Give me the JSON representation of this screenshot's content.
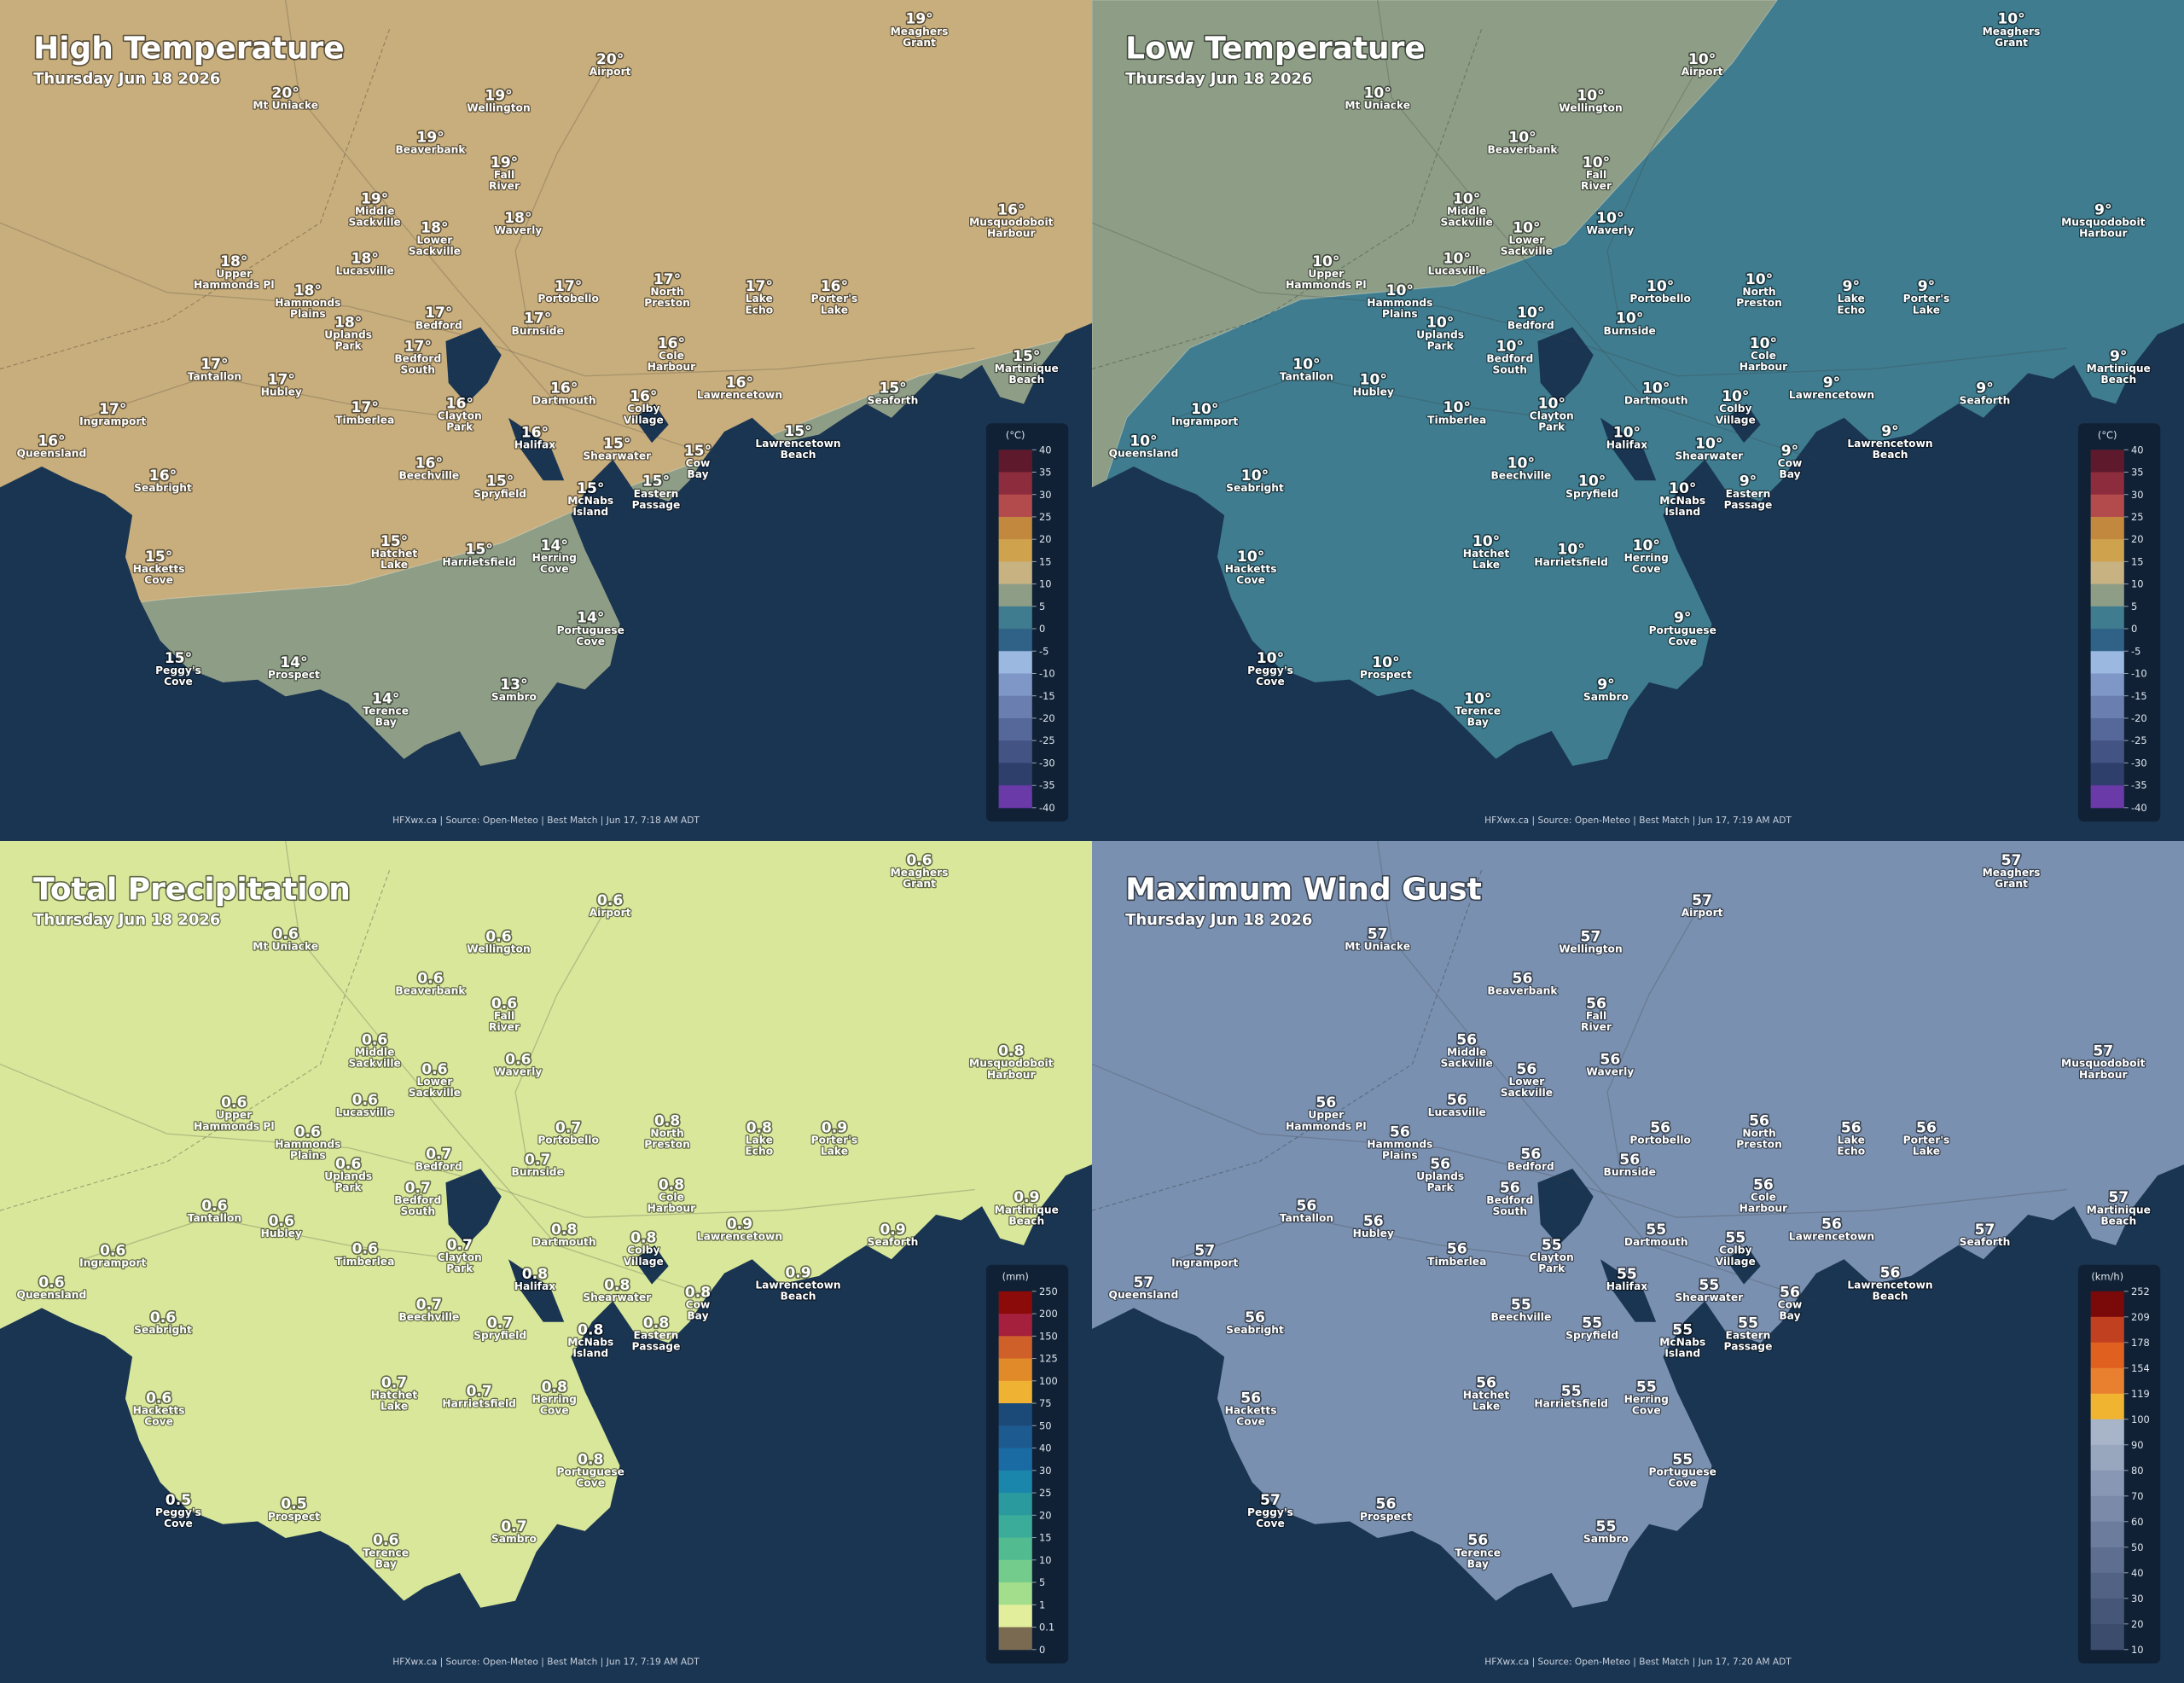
{
  "places": [
    [
      "Meaghers",
      "Grant"
    ],
    [
      "Airport"
    ],
    [
      "Mt Uniacke"
    ],
    [
      "Wellington"
    ],
    [
      "Beaverbank"
    ],
    [
      "Fall",
      "River"
    ],
    [
      "Middle",
      "Sackville"
    ],
    [
      "Waverly"
    ],
    [
      "Lower",
      "Sackville"
    ],
    [
      "Musquodoboit",
      "Harbour"
    ],
    [
      "Upper",
      "Hammonds Pl"
    ],
    [
      "Lucasville"
    ],
    [
      "Portobello"
    ],
    [
      "North",
      "Preston"
    ],
    [
      "Lake",
      "Echo"
    ],
    [
      "Porter's",
      "Lake"
    ],
    [
      "Hammonds",
      "Plains"
    ],
    [
      "Bedford"
    ],
    [
      "Uplands",
      "Park"
    ],
    [
      "Burnside"
    ],
    [
      "Cole",
      "Harbour"
    ],
    [
      "Bedford",
      "South"
    ],
    [
      "Martinique",
      "Beach"
    ],
    [
      "Tantallon"
    ],
    [
      "Hubley"
    ],
    [
      "Dartmouth"
    ],
    [
      "Lawrencetown"
    ],
    [
      "Seaforth"
    ],
    [
      "Colby",
      "Village"
    ],
    [
      "Timberlea"
    ],
    [
      "Ingramport"
    ],
    [
      "Clayton",
      "Park"
    ],
    [
      "Halifax"
    ],
    [
      "Lawrencetown",
      "Beach"
    ],
    [
      "Queensland"
    ],
    [
      "Shearwater"
    ],
    [
      "Cow",
      "Bay"
    ],
    [
      "Beechville"
    ],
    [
      "Seabright"
    ],
    [
      "Spryfield"
    ],
    [
      "McNabs",
      "Island"
    ],
    [
      "Eastern",
      "Passage"
    ],
    [
      "Hatchet",
      "Lake"
    ],
    [
      "Harrietsfield"
    ],
    [
      "Herring",
      "Cove"
    ],
    [
      "Hacketts",
      "Cove"
    ],
    [
      "Portuguese",
      "Cove"
    ],
    [
      "Peggy's",
      "Cove"
    ],
    [
      "Prospect"
    ],
    [
      "Sambro"
    ],
    [
      "Terence",
      "Bay"
    ]
  ],
  "panels": [
    {
      "title": "High Temperature",
      "date": "Thursday Jun 18 2026",
      "footer": "HFXwx.ca | Source: Open-Meteo | Best Match | Jun 17, 7:18 AM ADT",
      "legend": {
        "unit": "(°C)",
        "ticks": [
          40,
          35,
          30,
          25,
          20,
          15,
          10,
          5,
          0,
          -5,
          -10,
          -15,
          -20,
          -25,
          -30,
          -35,
          -40
        ],
        "colors": [
          "#5e1a2c",
          "#8c2c3c",
          "#b34a4c",
          "#c2883e",
          "#cfa24e",
          "#c8b282",
          "#8e9e86",
          "#3f7c8f",
          "#2f6286",
          "#9ab8e0",
          "#7e97c6",
          "#6a7fb0",
          "#56689a",
          "#435484",
          "#2f3f6c",
          "#6a3aa8"
        ]
      },
      "values": [
        "19°",
        "20°",
        "20°",
        "19°",
        "19°",
        "19°",
        "19°",
        "18°",
        "18°",
        "16°",
        "18°",
        "18°",
        "17°",
        "17°",
        "17°",
        "16°",
        "18°",
        "17°",
        "18°",
        "17°",
        "16°",
        "17°",
        "15°",
        "17°",
        "17°",
        "16°",
        "16°",
        "15°",
        "16°",
        "17°",
        "17°",
        "16°",
        "16°",
        "15°",
        "16°",
        "15°",
        "15°",
        "16°",
        "16°",
        "15°",
        "15°",
        "15°",
        "15°",
        "15°",
        "14°",
        "15°",
        "14°",
        "15°",
        "14°",
        "13°",
        "14°"
      ]
    },
    {
      "title": "Low Temperature",
      "date": "Thursday Jun 18 2026",
      "footer": "HFXwx.ca | Source: Open-Meteo | Best Match | Jun 17, 7:19 AM ADT",
      "legend": {
        "unit": "(°C)",
        "ticks": [
          40,
          35,
          30,
          25,
          20,
          15,
          10,
          5,
          0,
          -5,
          -10,
          -15,
          -20,
          -25,
          -30,
          -35,
          -40
        ],
        "colors": [
          "#5e1a2c",
          "#8c2c3c",
          "#b34a4c",
          "#c2883e",
          "#cfa24e",
          "#c8b282",
          "#8e9e86",
          "#3f7c8f",
          "#2f6286",
          "#9ab8e0",
          "#7e97c6",
          "#6a7fb0",
          "#56689a",
          "#435484",
          "#2f3f6c",
          "#6a3aa8"
        ]
      },
      "values": [
        "10°",
        "10°",
        "10°",
        "10°",
        "10°",
        "10°",
        "10°",
        "10°",
        "10°",
        "9°",
        "10°",
        "10°",
        "10°",
        "10°",
        "9°",
        "9°",
        "10°",
        "10°",
        "10°",
        "10°",
        "10°",
        "10°",
        "9°",
        "10°",
        "10°",
        "10°",
        "9°",
        "9°",
        "10°",
        "10°",
        "10°",
        "10°",
        "10°",
        "9°",
        "10°",
        "10°",
        "9°",
        "10°",
        "10°",
        "10°",
        "10°",
        "9°",
        "10°",
        "10°",
        "10°",
        "10°",
        "9°",
        "10°",
        "10°",
        "9°",
        "10°"
      ]
    },
    {
      "title": "Total Precipitation",
      "date": "Thursday Jun 18 2026",
      "footer": "HFXwx.ca | Source: Open-Meteo | Best Match | Jun 17, 7:19 AM ADT",
      "legend": {
        "unit": "(mm)",
        "ticks": [
          250,
          200,
          150,
          125,
          100,
          75,
          50,
          40,
          30,
          25,
          20,
          15,
          10,
          5,
          1,
          0.1,
          0
        ],
        "colors": [
          "#8b0a0a",
          "#a4203c",
          "#d0602a",
          "#e08a2a",
          "#f0b232",
          "#1c4a78",
          "#1d5a90",
          "#1a6aa4",
          "#1a86ac",
          "#2a9a9e",
          "#3cac9a",
          "#52bc90",
          "#74cc8c",
          "#a2de8c",
          "#e2ee9c",
          "#7a6a52"
        ]
      },
      "values": [
        "0.6",
        "0.6",
        "0.6",
        "0.6",
        "0.6",
        "0.6",
        "0.6",
        "0.6",
        "0.6",
        "0.8",
        "0.6",
        "0.6",
        "0.7",
        "0.8",
        "0.8",
        "0.9",
        "0.6",
        "0.7",
        "0.6",
        "0.7",
        "0.8",
        "0.7",
        "0.9",
        "0.6",
        "0.6",
        "0.8",
        "0.9",
        "0.9",
        "0.8",
        "0.6",
        "0.6",
        "0.7",
        "0.8",
        "0.9",
        "0.6",
        "0.8",
        "0.8",
        "0.7",
        "0.6",
        "0.7",
        "0.8",
        "0.8",
        "0.7",
        "0.7",
        "0.8",
        "0.6",
        "0.8",
        "0.5",
        "0.5",
        "0.7",
        "0.6"
      ]
    },
    {
      "title": "Maximum Wind Gust",
      "date": "Thursday Jun 18 2026",
      "footer": "HFXwx.ca | Source: Open-Meteo | Best Match | Jun 17, 7:20 AM ADT",
      "legend": {
        "unit": "(km/h)",
        "ticks": [
          252,
          209,
          178,
          154,
          119,
          100,
          90,
          80,
          70,
          60,
          50,
          40,
          30,
          20,
          10
        ],
        "colors": [
          "#7a0a0a",
          "#c04020",
          "#e06020",
          "#e88030",
          "#f0b430",
          "#a8b4c8",
          "#98a6be",
          "#8898b4",
          "#7a8aa8",
          "#6c7c9c",
          "#5e6e90",
          "#526284",
          "#465678",
          "#3c4c6c"
        ]
      },
      "values": [
        "57",
        "57",
        "57",
        "57",
        "56",
        "56",
        "56",
        "56",
        "56",
        "57",
        "56",
        "56",
        "56",
        "56",
        "56",
        "56",
        "56",
        "56",
        "56",
        "56",
        "56",
        "56",
        "57",
        "56",
        "56",
        "55",
        "56",
        "57",
        "55",
        "56",
        "57",
        "55",
        "55",
        "56",
        "57",
        "55",
        "56",
        "55",
        "56",
        "55",
        "55",
        "55",
        "56",
        "55",
        "55",
        "56",
        "55",
        "57",
        "56",
        "55",
        "56"
      ]
    }
  ]
}
